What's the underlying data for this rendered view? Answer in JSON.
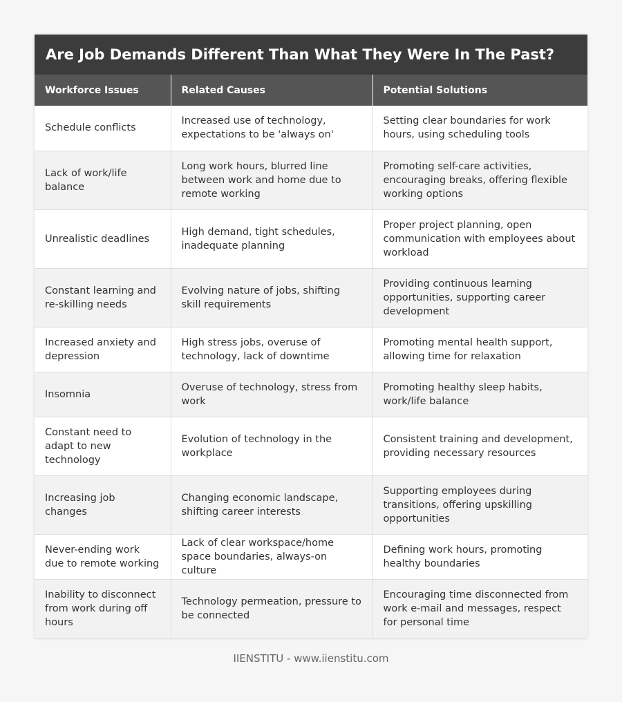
{
  "title": "Are Job Demands Different Than What They Were In The Past?",
  "headers": [
    "Workforce Issues",
    "Related Causes",
    "Potential Solutions"
  ],
  "rows": [
    [
      "Schedule conflicts",
      "Increased use of technology, expectations to be 'always on'",
      "Setting clear boundaries for work hours, using scheduling tools"
    ],
    [
      "Lack of work/life balance",
      "Long work hours, blurred line between work and home due to remote working",
      "Promoting self-care activities, encouraging breaks, offering flexible working options"
    ],
    [
      "Unrealistic deadlines",
      "High demand, tight schedules, inadequate planning",
      "Proper project planning, open communication with employees about workload"
    ],
    [
      "Constant learning and re-skilling needs",
      "Evolving nature of jobs, shifting skill requirements",
      "Providing continuous learning opportunities, supporting career development"
    ],
    [
      "Increased anxiety and depression",
      "High stress jobs, overuse of technology, lack of downtime",
      "Promoting mental health support, allowing time for relaxation"
    ],
    [
      "Insomnia",
      "Overuse of technology, stress from work",
      "Promoting healthy sleep habits, work/life balance"
    ],
    [
      "Constant need to adapt to new technology",
      "Evolution of technology in the workplace",
      "Consistent training and development, providing necessary resources"
    ],
    [
      "Increasing job changes",
      "Changing economic landscape, shifting career interests",
      "Supporting employees during transitions, offering upskilling opportunities"
    ],
    [
      "Never-ending work due to remote working",
      "Lack of clear workspace/home space boundaries, always-on culture",
      "Defining work hours, promoting healthy boundaries"
    ],
    [
      "Inability to disconnect from work during off hours",
      "Technology permeation, pressure to be connected",
      "Encouraging time disconnected from work e-mail and messages, respect for personal time"
    ]
  ],
  "footer": "IIENSTITU - www.iienstitu.com",
  "colors": {
    "title_bg": "#3c3c3c",
    "header_bg": "#555555",
    "row_alt_bg": "#f2f2f2",
    "text": "#333333"
  }
}
